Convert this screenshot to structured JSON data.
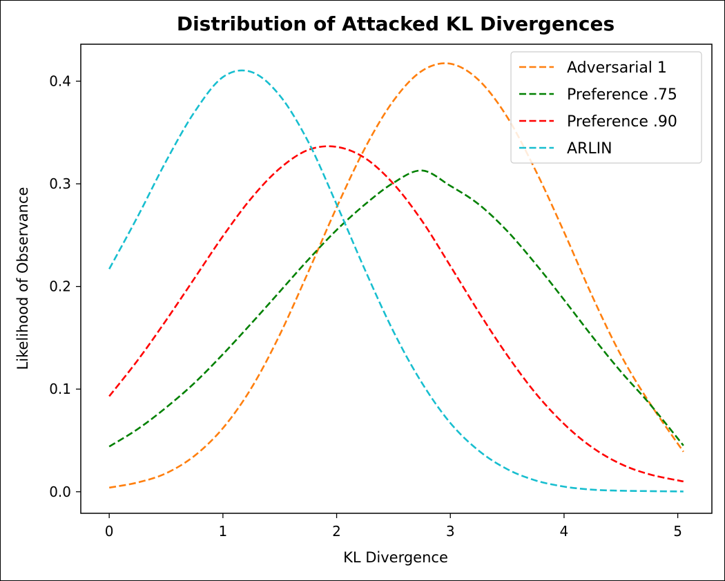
{
  "chart_data": {
    "type": "line",
    "title": "Distribution of Attacked KL Divergences",
    "xlabel": "KL Divergence",
    "ylabel": "Likelihood of Observance",
    "xlim": [
      -0.25,
      5.3
    ],
    "ylim": [
      -0.021,
      0.436
    ],
    "xticks": [
      0,
      1,
      2,
      3,
      4,
      5
    ],
    "yticks": [
      0.0,
      0.1,
      0.2,
      0.3,
      0.4
    ],
    "xtick_labels": [
      "0",
      "1",
      "2",
      "3",
      "4",
      "5"
    ],
    "ytick_labels": [
      "0.0",
      "0.1",
      "0.2",
      "0.3",
      "0.4"
    ],
    "grid": false,
    "legend_position": "top-right",
    "line_style": "dashed",
    "series": [
      {
        "name": "Adversarial 1",
        "color": "#ff7f0e",
        "x": [
          0.0,
          0.25,
          0.5,
          0.75,
          1.0,
          1.25,
          1.5,
          1.75,
          2.0,
          2.25,
          2.5,
          2.75,
          3.0,
          3.25,
          3.5,
          3.75,
          4.0,
          4.25,
          4.5,
          4.75,
          5.05
        ],
        "y": [
          0.004,
          0.009,
          0.018,
          0.035,
          0.062,
          0.101,
          0.153,
          0.214,
          0.277,
          0.335,
          0.381,
          0.41,
          0.417,
          0.401,
          0.365,
          0.313,
          0.253,
          0.19,
          0.133,
          0.087,
          0.039
        ]
      },
      {
        "name": "Preference .75",
        "color": "#008000",
        "x": [
          0.0,
          0.25,
          0.5,
          0.75,
          1.0,
          1.25,
          1.5,
          1.75,
          2.0,
          2.25,
          2.5,
          2.75,
          3.0,
          3.25,
          3.5,
          3.75,
          4.0,
          4.25,
          4.5,
          4.75,
          5.05
        ],
        "y": [
          0.044,
          0.061,
          0.082,
          0.106,
          0.134,
          0.164,
          0.195,
          0.226,
          0.255,
          0.28,
          0.301,
          0.313,
          0.298,
          0.28,
          0.254,
          0.222,
          0.187,
          0.151,
          0.117,
          0.086,
          0.045
        ]
      },
      {
        "name": "Preference .90",
        "color": "#ff0000",
        "x": [
          0.0,
          0.25,
          0.5,
          0.75,
          1.0,
          1.25,
          1.5,
          1.75,
          2.0,
          2.25,
          2.5,
          2.75,
          3.0,
          3.25,
          3.5,
          3.75,
          4.0,
          4.25,
          4.5,
          4.75,
          5.05
        ],
        "y": [
          0.093,
          0.128,
          0.167,
          0.208,
          0.249,
          0.286,
          0.315,
          0.333,
          0.336,
          0.325,
          0.3,
          0.264,
          0.22,
          0.175,
          0.133,
          0.096,
          0.066,
          0.043,
          0.027,
          0.017,
          0.01
        ]
      },
      {
        "name": "ARLIN",
        "color": "#17becf",
        "x": [
          0.0,
          0.25,
          0.5,
          0.75,
          1.0,
          1.25,
          1.5,
          1.75,
          2.0,
          2.25,
          2.5,
          2.75,
          3.0,
          3.25,
          3.5,
          3.75,
          4.0,
          4.25,
          4.5,
          4.75,
          5.05
        ],
        "y": [
          0.217,
          0.268,
          0.322,
          0.37,
          0.404,
          0.409,
          0.386,
          0.341,
          0.28,
          0.216,
          0.156,
          0.106,
          0.067,
          0.04,
          0.022,
          0.011,
          0.005,
          0.002,
          0.001,
          0.0006,
          0.0003
        ]
      }
    ]
  }
}
